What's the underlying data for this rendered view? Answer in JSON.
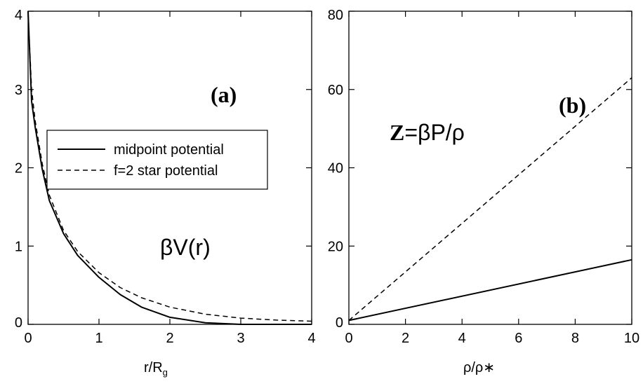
{
  "chart_data": [
    {
      "type": "line",
      "panel_tag": "(a)",
      "annotation": "βV(r)",
      "xlabel": "r/R",
      "xlabel_sub": "g",
      "ylabel": "",
      "xlim": [
        0,
        4
      ],
      "ylim": [
        0,
        4
      ],
      "x_ticks": [
        "0",
        "1",
        "2",
        "3",
        "4"
      ],
      "y_ticks": [
        "0",
        "1",
        "2",
        "3",
        "4"
      ],
      "legend": {
        "placement": "upper-middle-left"
      },
      "series": [
        {
          "name": "midpoint potential",
          "style": "solid",
          "x": [
            0,
            0.05,
            0.1,
            0.2,
            0.3,
            0.5,
            0.7,
            1.0,
            1.3,
            1.6,
            2.0,
            2.5,
            3.0,
            3.5,
            4.0
          ],
          "y": [
            4.0,
            2.85,
            2.52,
            1.98,
            1.58,
            1.16,
            0.88,
            0.6,
            0.38,
            0.22,
            0.09,
            0.02,
            0.0,
            0.0,
            0.0
          ]
        },
        {
          "name": "f=2 star potential",
          "style": "dashed",
          "x": [
            0,
            0.05,
            0.1,
            0.2,
            0.3,
            0.5,
            0.7,
            1.0,
            1.3,
            1.6,
            2.0,
            2.5,
            3.0,
            3.5,
            4.0
          ],
          "y": [
            4.0,
            3.0,
            2.6,
            2.05,
            1.65,
            1.2,
            0.93,
            0.66,
            0.47,
            0.34,
            0.22,
            0.13,
            0.08,
            0.055,
            0.04
          ]
        }
      ]
    },
    {
      "type": "line",
      "panel_tag": "(b)",
      "annotation_bold": "Z",
      "annotation_rest": "=βP/ρ",
      "xlabel": "ρ/ρ∗",
      "ylabel": "",
      "xlim": [
        0,
        10
      ],
      "ylim": [
        0,
        80
      ],
      "x_ticks": [
        "0",
        "2",
        "4",
        "6",
        "8",
        "10"
      ],
      "y_ticks": [
        "0",
        "20",
        "40",
        "60",
        "80"
      ],
      "series": [
        {
          "style": "dashed",
          "x": [
            0,
            10
          ],
          "y": [
            1,
            63
          ]
        },
        {
          "style": "solid",
          "x": [
            0,
            10
          ],
          "y": [
            1,
            16.5
          ]
        }
      ]
    }
  ]
}
